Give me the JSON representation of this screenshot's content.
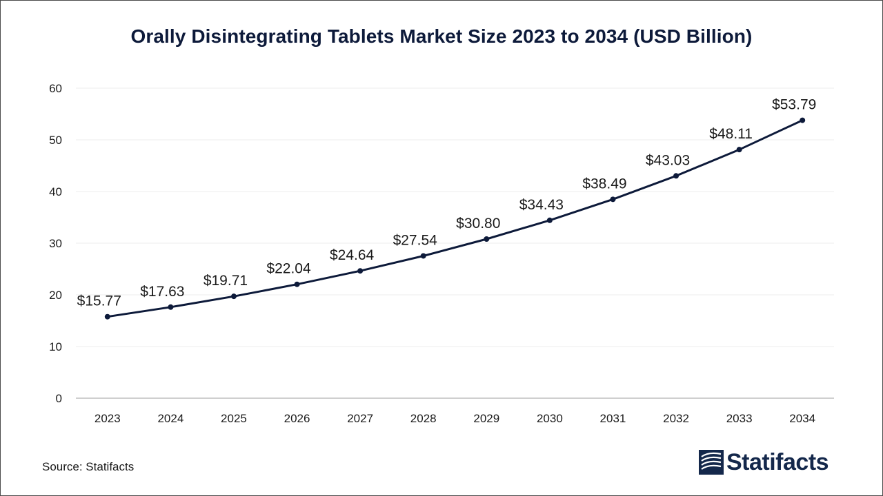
{
  "chart_data": {
    "type": "line",
    "title": "Orally Disintegrating Tablets Market Size 2023 to 2034 (USD Billion)",
    "xlabel": "",
    "ylabel": "",
    "categories": [
      "2023",
      "2024",
      "2025",
      "2026",
      "2027",
      "2028",
      "2029",
      "2030",
      "2031",
      "2032",
      "2033",
      "2034"
    ],
    "values": [
      15.77,
      17.63,
      19.71,
      22.04,
      24.64,
      27.54,
      30.8,
      34.43,
      38.49,
      43.03,
      48.11,
      53.79
    ],
    "data_labels": [
      "$15.77",
      "$17.63",
      "$19.71",
      "$22.04",
      "$24.64",
      "$27.54",
      "$30.80",
      "$34.43",
      "$38.49",
      "$43.03",
      "$48.11",
      "$53.79"
    ],
    "ylim": [
      0,
      60
    ],
    "yticks": [
      "0",
      "10",
      "20",
      "30",
      "40",
      "50",
      "60"
    ],
    "grid": true,
    "line_color": "#0d1a3a",
    "grid_color": "#eeeeee",
    "axis_color": "#bfbfbf"
  },
  "footer": {
    "source": "Source: Statifacts",
    "brand": "Statifacts",
    "brand_icon": "statifacts-logo-icon"
  },
  "colors": {
    "title": "#0d1a3a",
    "brand": "#14284b"
  }
}
